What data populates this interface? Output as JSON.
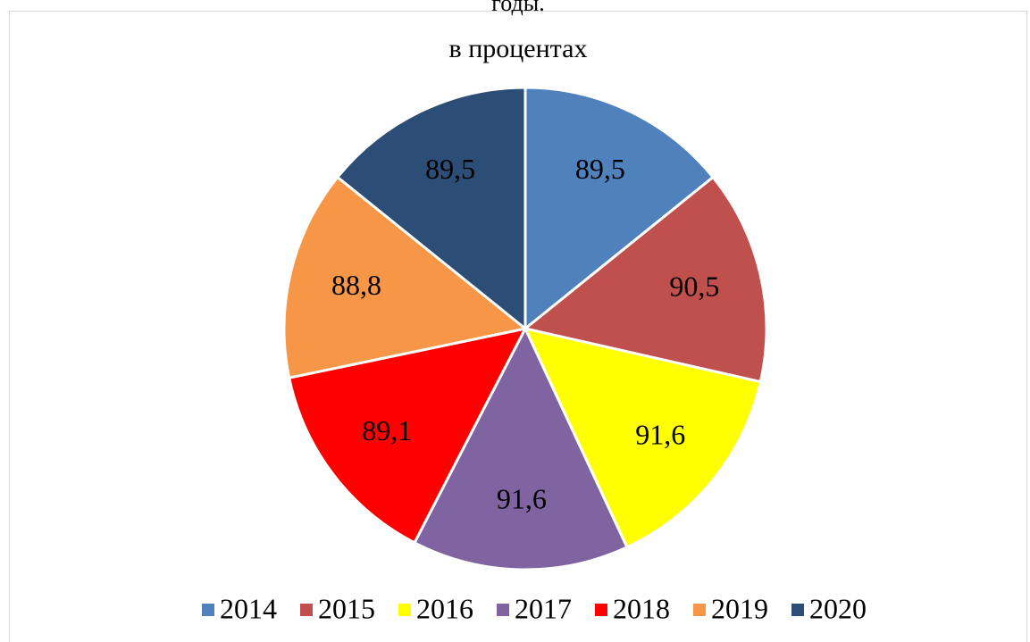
{
  "chart_data": {
    "type": "pie",
    "title": "годы.",
    "subtitle": "в процентах",
    "categories": [
      "2014",
      "2015",
      "2016",
      "2017",
      "2018",
      "2019",
      "2020"
    ],
    "values": [
      89.5,
      90.5,
      91.6,
      91.6,
      89.1,
      88.8,
      89.5
    ],
    "value_labels": [
      "89,5",
      "90,5",
      "91,6",
      "91,6",
      "89,1",
      "88,8",
      "89,5"
    ],
    "colors": [
      "#4f81bd",
      "#c0504d",
      "#ffff00",
      "#8064a2",
      "#ff0000",
      "#f79646",
      "#2c4d75"
    ],
    "legend": "bottom"
  }
}
